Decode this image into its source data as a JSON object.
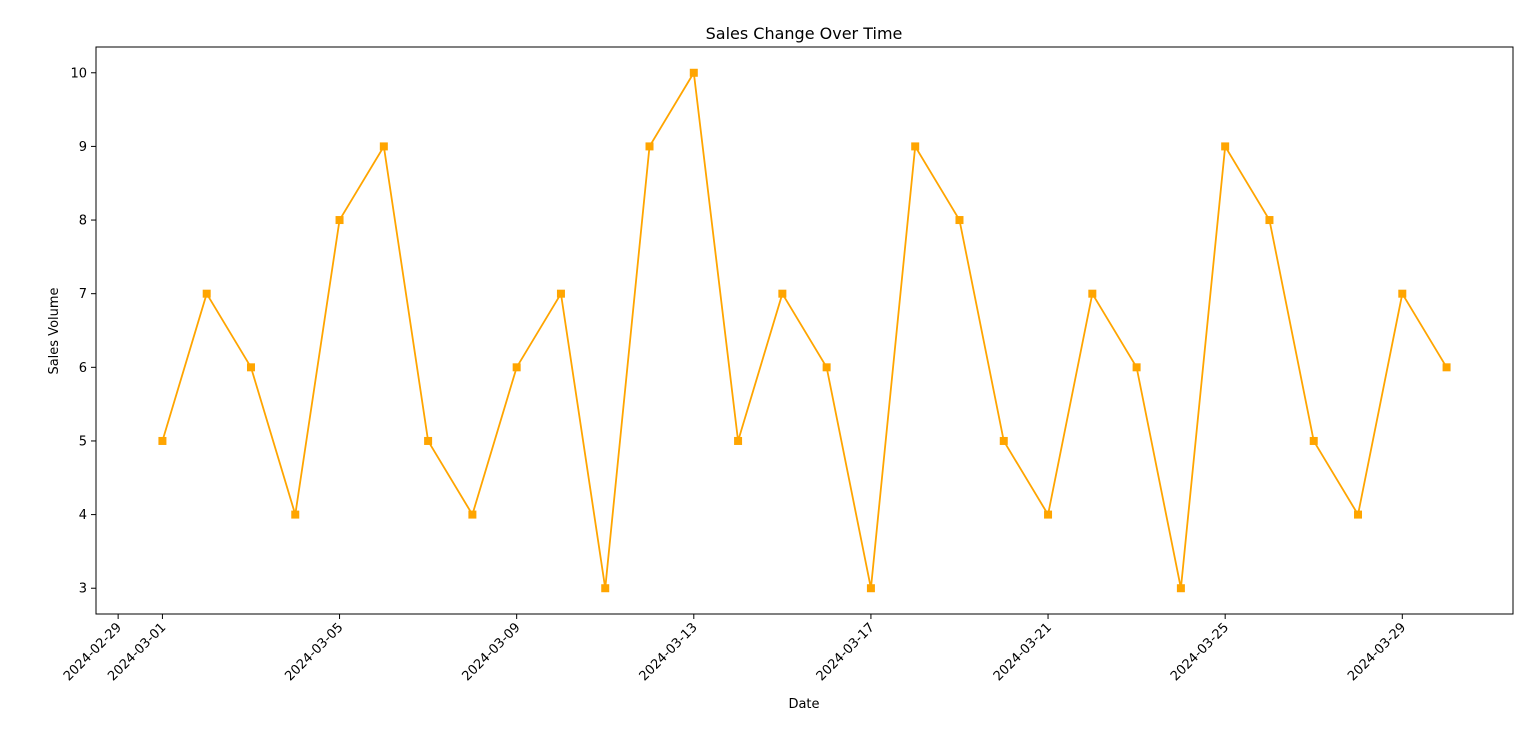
{
  "chart_data": {
    "type": "line",
    "title": "Sales Change Over Time",
    "xlabel": "Date",
    "ylabel": "Sales Volume",
    "x": [
      "2024-03-01",
      "2024-03-02",
      "2024-03-03",
      "2024-03-04",
      "2024-03-05",
      "2024-03-06",
      "2024-03-07",
      "2024-03-08",
      "2024-03-09",
      "2024-03-10",
      "2024-03-11",
      "2024-03-12",
      "2024-03-13",
      "2024-03-14",
      "2024-03-15",
      "2024-03-16",
      "2024-03-17",
      "2024-03-18",
      "2024-03-19",
      "2024-03-20",
      "2024-03-21",
      "2024-03-22",
      "2024-03-23",
      "2024-03-24",
      "2024-03-25",
      "2024-03-26",
      "2024-03-27",
      "2024-03-28",
      "2024-03-29",
      "2024-03-30"
    ],
    "series": [
      {
        "values": [
          5,
          7,
          6,
          4,
          8,
          9,
          5,
          4,
          6,
          7,
          3,
          9,
          10,
          5,
          7,
          6,
          3,
          9,
          8,
          5,
          4,
          7,
          6,
          3,
          9,
          8,
          5,
          4,
          7,
          6
        ],
        "color": "#FFA500",
        "marker": "square"
      }
    ],
    "xticks": [
      "2024-02-29",
      "2024-03-01",
      "2024-03-05",
      "2024-03-09",
      "2024-03-13",
      "2024-03-17",
      "2024-03-21",
      "2024-03-25",
      "2024-03-29"
    ],
    "yticks": [
      3,
      4,
      5,
      6,
      7,
      8,
      9,
      10
    ],
    "xlim": [
      "2024-02-28.5",
      "2024-03-31.5"
    ],
    "ylim": [
      2.65,
      10.35
    ],
    "grid": false,
    "legend": "none"
  }
}
